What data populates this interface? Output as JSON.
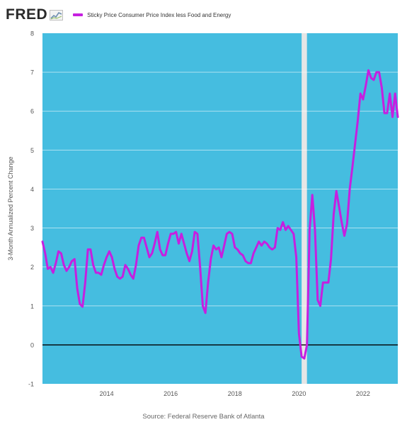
{
  "header": {
    "logo_text": "FRED",
    "logo_icon": "fred-chart-icon",
    "legend_label": "Sticky Price Consumer Price Index less Food and Energy"
  },
  "source": "Source: Federal Reserve Bank of Atlanta",
  "colors": {
    "series": "#c61fe0",
    "plot_background": "#45bde0",
    "recession_band": "#e6e6e6",
    "zero_line": "#000000"
  },
  "chart_data": {
    "type": "line",
    "ylabel": "3-Month Annualized Percent Change",
    "xlabel": "",
    "ylim": [
      -1,
      8
    ],
    "xlim": [
      "2012-01",
      "2023-02"
    ],
    "yticks": [
      "-1",
      "0",
      "1",
      "2",
      "3",
      "4",
      "5",
      "6",
      "7",
      "8"
    ],
    "xticks": [
      "2014",
      "2016",
      "2018",
      "2020",
      "2022"
    ],
    "grid": true,
    "shaded_period": [
      "2020-02",
      "2020-04"
    ],
    "reference_line": 0,
    "series": [
      {
        "name": "Sticky Price Consumer Price Index less Food and Energy",
        "x": [
          "2012-01",
          "2012-02",
          "2012-03",
          "2012-04",
          "2012-05",
          "2012-06",
          "2012-07",
          "2012-08",
          "2012-09",
          "2012-10",
          "2012-11",
          "2012-12",
          "2013-01",
          "2013-02",
          "2013-03",
          "2013-04",
          "2013-05",
          "2013-06",
          "2013-07",
          "2013-08",
          "2013-09",
          "2013-10",
          "2013-11",
          "2013-12",
          "2014-01",
          "2014-02",
          "2014-03",
          "2014-04",
          "2014-05",
          "2014-06",
          "2014-07",
          "2014-08",
          "2014-09",
          "2014-10",
          "2014-11",
          "2014-12",
          "2015-01",
          "2015-02",
          "2015-03",
          "2015-04",
          "2015-05",
          "2015-06",
          "2015-07",
          "2015-08",
          "2015-09",
          "2015-10",
          "2015-11",
          "2015-12",
          "2016-01",
          "2016-02",
          "2016-03",
          "2016-04",
          "2016-05",
          "2016-06",
          "2016-07",
          "2016-08",
          "2016-09",
          "2016-10",
          "2016-11",
          "2016-12",
          "2017-01",
          "2017-02",
          "2017-03",
          "2017-04",
          "2017-05",
          "2017-06",
          "2017-07",
          "2017-08",
          "2017-09",
          "2017-10",
          "2017-11",
          "2017-12",
          "2018-01",
          "2018-02",
          "2018-03",
          "2018-04",
          "2018-05",
          "2018-06",
          "2018-07",
          "2018-08",
          "2018-09",
          "2018-10",
          "2018-11",
          "2018-12",
          "2019-01",
          "2019-02",
          "2019-03",
          "2019-04",
          "2019-05",
          "2019-06",
          "2019-07",
          "2019-08",
          "2019-09",
          "2019-10",
          "2019-11",
          "2019-12",
          "2020-01",
          "2020-02",
          "2020-03",
          "2020-04",
          "2020-05",
          "2020-06",
          "2020-07",
          "2020-08",
          "2020-09",
          "2020-10",
          "2020-11",
          "2020-12",
          "2021-01",
          "2021-02",
          "2021-03",
          "2021-04",
          "2021-05",
          "2021-06",
          "2021-07",
          "2021-08",
          "2021-09",
          "2021-10",
          "2021-11",
          "2021-12",
          "2022-01",
          "2022-02",
          "2022-03",
          "2022-04",
          "2022-05",
          "2022-06",
          "2022-07",
          "2022-08",
          "2022-09",
          "2022-10",
          "2022-11",
          "2022-12",
          "2023-01",
          "2023-02"
        ],
        "values": [
          2.65,
          2.35,
          1.95,
          2.0,
          1.85,
          2.1,
          2.4,
          2.35,
          2.05,
          1.9,
          2.0,
          2.15,
          2.2,
          1.45,
          1.05,
          0.98,
          1.6,
          2.45,
          2.45,
          2.05,
          1.85,
          1.85,
          1.8,
          2.05,
          2.25,
          2.4,
          2.25,
          1.95,
          1.75,
          1.7,
          1.75,
          2.05,
          1.95,
          1.8,
          1.7,
          2.05,
          2.55,
          2.75,
          2.75,
          2.5,
          2.25,
          2.35,
          2.6,
          2.9,
          2.45,
          2.3,
          2.3,
          2.6,
          2.85,
          2.85,
          2.9,
          2.6,
          2.85,
          2.6,
          2.35,
          2.15,
          2.4,
          2.9,
          2.85,
          2.0,
          1.0,
          0.82,
          1.6,
          2.2,
          2.55,
          2.45,
          2.5,
          2.25,
          2.55,
          2.85,
          2.9,
          2.85,
          2.5,
          2.45,
          2.35,
          2.3,
          2.15,
          2.1,
          2.1,
          2.35,
          2.5,
          2.65,
          2.55,
          2.65,
          2.6,
          2.5,
          2.45,
          2.5,
          3.0,
          2.95,
          3.15,
          2.95,
          3.05,
          2.95,
          2.85,
          2.25,
          0.3,
          -0.3,
          -0.35,
          0.0,
          2.95,
          3.85,
          2.95,
          1.15,
          1.0,
          1.6,
          1.6,
          1.6,
          2.2,
          3.35,
          3.95,
          3.55,
          3.15,
          2.8,
          3.1,
          4.0,
          4.55,
          5.15,
          5.75,
          6.45,
          6.3,
          6.65,
          7.05,
          6.85,
          6.8,
          7.0,
          7.0,
          6.6,
          5.95,
          5.95,
          6.45,
          5.85,
          6.45,
          5.85
        ]
      }
    ]
  }
}
